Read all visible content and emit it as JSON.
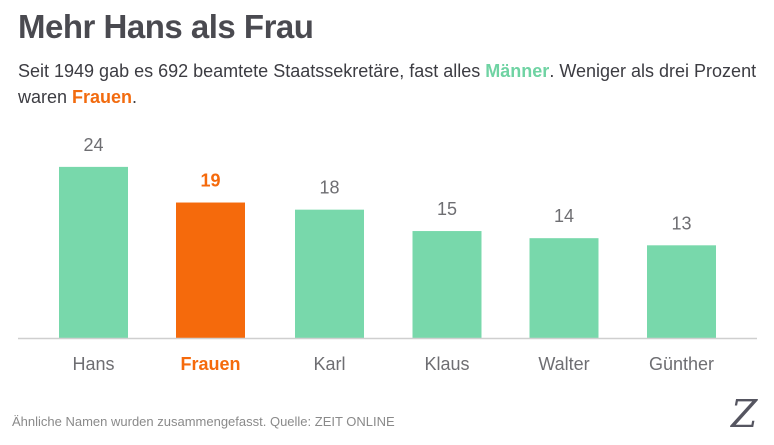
{
  "header": {
    "title": "Mehr Hans als Frau",
    "subtitle_part1": "Seit 1949 gab es 692 beamtete Staatssekretäre, fast alles ",
    "subtitle_highlight_men": "Männer",
    "subtitle_part2": ". Weniger als drei Prozent waren ",
    "subtitle_highlight_women": "Frauen",
    "subtitle_part3": "."
  },
  "colors": {
    "default_bar": "#78d8ab",
    "highlight_bar": "#f56a0c",
    "text": "#4a4a50",
    "label": "#6e6e72",
    "baseline": "#cfcfcf"
  },
  "chart_data": {
    "type": "bar",
    "title": "Mehr Hans als Frau",
    "xlabel": "",
    "ylabel": "",
    "categories": [
      "Hans",
      "Frauen",
      "Karl",
      "Klaus",
      "Walter",
      "Günther"
    ],
    "values": [
      24,
      19,
      18,
      15,
      14,
      13
    ],
    "highlight": "Frauen",
    "ylim": [
      0,
      24
    ],
    "grid": false,
    "legend": "none"
  },
  "footer": {
    "note": "Ähnliche Namen wurden zusammengefasst. Quelle:  ZEIT ONLINE",
    "logo": "Z"
  }
}
